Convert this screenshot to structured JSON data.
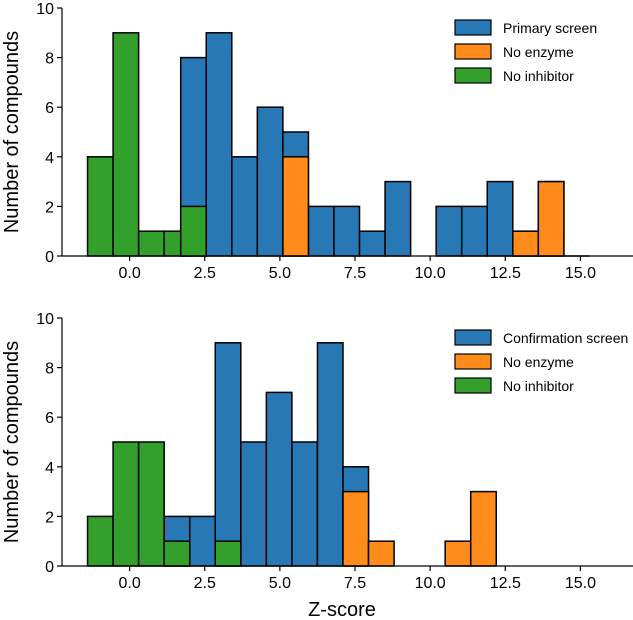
{
  "colors": {
    "Primary screen": "#2878b5",
    "Confirmation screen": "#2878b5",
    "No enzyme": "#ff8c1a",
    "No inhibitor": "#33a02c",
    "edge": "#000000"
  },
  "chart_data": [
    {
      "type": "bar",
      "xlabel": "",
      "ylabel": "Number of compounds",
      "xlim": [
        -2.25,
        16.75
      ],
      "ylim": [
        0,
        10
      ],
      "xticks": [
        "0.0",
        "2.5",
        "5.0",
        "7.5",
        "10.0",
        "12.5",
        "15.0"
      ],
      "yticks": [
        "0",
        "2",
        "4",
        "6",
        "8",
        "10"
      ],
      "legend_position": "top-right",
      "legend": [
        "Primary screen",
        "No enzyme",
        "No inhibitor"
      ],
      "bin_width": 0.85,
      "series": [
        {
          "name": "Primary screen",
          "color_key": "Primary screen",
          "bins": [
            {
              "x": 1.7,
              "value": 8
            },
            {
              "x": 2.55,
              "value": 9
            },
            {
              "x": 3.4,
              "value": 4
            },
            {
              "x": 4.25,
              "value": 6
            },
            {
              "x": 5.1,
              "value": 5
            },
            {
              "x": 5.95,
              "value": 2
            },
            {
              "x": 6.8,
              "value": 2
            },
            {
              "x": 7.65,
              "value": 1
            },
            {
              "x": 8.5,
              "value": 3
            },
            {
              "x": 10.2,
              "value": 2
            },
            {
              "x": 11.05,
              "value": 2
            },
            {
              "x": 11.9,
              "value": 3
            },
            {
              "x": 12.75,
              "value": 1
            },
            {
              "x": 13.6,
              "value": 3
            },
            {
              "x": 14.45,
              "value": 0
            }
          ]
        },
        {
          "name": "No enzyme",
          "color_key": "No enzyme",
          "bins": [
            {
              "x": 5.1,
              "value": 4
            },
            {
              "x": 12.75,
              "value": 1
            },
            {
              "x": 13.6,
              "value": 3
            }
          ]
        },
        {
          "name": "No inhibitor",
          "color_key": "No inhibitor",
          "bins": [
            {
              "x": -1.4,
              "value": 4
            },
            {
              "x": -0.55,
              "value": 9
            },
            {
              "x": 0.3,
              "value": 1
            },
            {
              "x": 1.15,
              "value": 1
            },
            {
              "x": 1.7,
              "value": 2
            }
          ]
        }
      ]
    },
    {
      "type": "bar",
      "xlabel": "Z-score",
      "ylabel": "Number of compounds",
      "xlim": [
        -2.25,
        16.75
      ],
      "ylim": [
        0,
        10
      ],
      "xticks": [
        "0.0",
        "2.5",
        "5.0",
        "7.5",
        "10.0",
        "12.5",
        "15.0"
      ],
      "yticks": [
        "0",
        "2",
        "4",
        "6",
        "8",
        "10"
      ],
      "legend_position": "top-right",
      "legend": [
        "Confirmation screen",
        "No enzyme",
        "No inhibitor"
      ],
      "bin_width": 0.85,
      "series": [
        {
          "name": "Confirmation screen",
          "color_key": "Confirmation screen",
          "bins": [
            {
              "x": 1.15,
              "value": 2
            },
            {
              "x": 2.0,
              "value": 2
            },
            {
              "x": 2.85,
              "value": 9
            },
            {
              "x": 3.7,
              "value": 5
            },
            {
              "x": 4.55,
              "value": 7
            },
            {
              "x": 5.4,
              "value": 5
            },
            {
              "x": 6.25,
              "value": 9
            },
            {
              "x": 7.1,
              "value": 4
            }
          ]
        },
        {
          "name": "No enzyme",
          "color_key": "No enzyme",
          "bins": [
            {
              "x": 7.1,
              "value": 3
            },
            {
              "x": 7.95,
              "value": 1
            },
            {
              "x": 10.5,
              "value": 1
            },
            {
              "x": 11.35,
              "value": 3
            }
          ]
        },
        {
          "name": "No inhibitor",
          "color_key": "No inhibitor",
          "bins": [
            {
              "x": -1.4,
              "value": 2
            },
            {
              "x": -0.55,
              "value": 5
            },
            {
              "x": 0.3,
              "value": 5
            },
            {
              "x": 1.15,
              "value": 1
            },
            {
              "x": 2.85,
              "value": 1
            }
          ]
        }
      ]
    }
  ]
}
